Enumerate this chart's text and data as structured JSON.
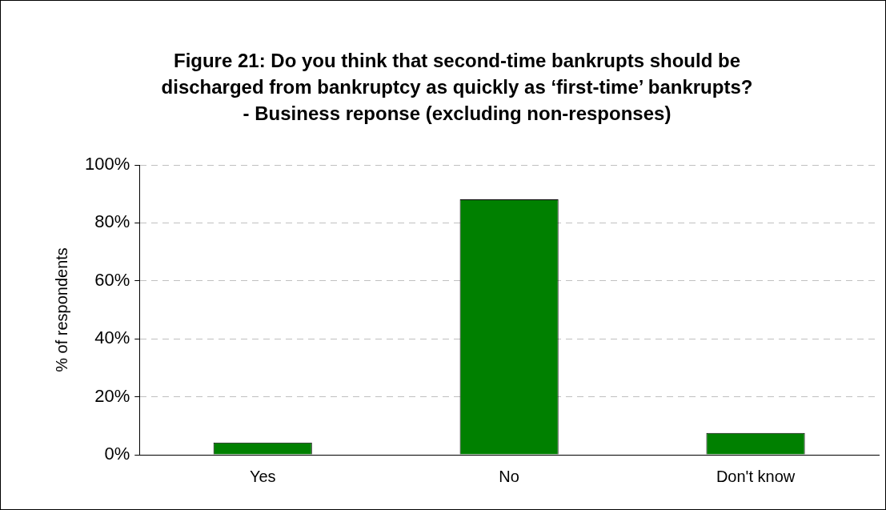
{
  "chart_data": {
    "type": "bar",
    "title": "Figure 21: Do you think that second-time bankrupts should be discharged from bankruptcy as quickly as ‘first-time’ bankrupts? - Business reponse (excluding non-responses)",
    "ylabel": "% of respondents",
    "categories": [
      "Yes",
      "No",
      "Don't know"
    ],
    "values": [
      4.2,
      88.1,
      7.5
    ],
    "color": "#008000",
    "ylim": [
      0,
      100
    ],
    "yticks": [
      {
        "value": 0,
        "label": "0%"
      },
      {
        "value": 20,
        "label": "20%"
      },
      {
        "value": 40,
        "label": "40%"
      },
      {
        "value": 60,
        "label": "60%"
      },
      {
        "value": 80,
        "label": "80%"
      },
      {
        "value": 100,
        "label": "100%"
      }
    ],
    "grid": "y",
    "legend": false
  }
}
